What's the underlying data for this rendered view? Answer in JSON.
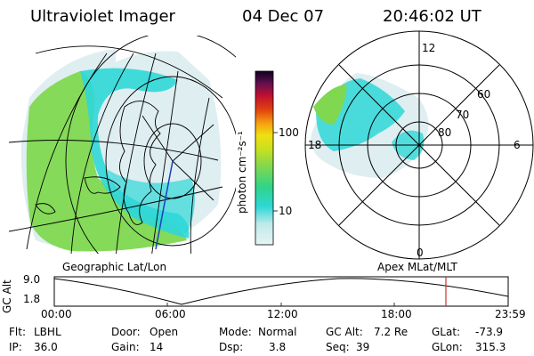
{
  "header": {
    "instrument": "Ultraviolet Imager",
    "date": "04 Dec 07",
    "time": "20:46:02 UT"
  },
  "colorbar": {
    "unit_label": "photon cm⁻²s⁻¹",
    "ticks": [
      "100",
      "10"
    ]
  },
  "geo_panel": {
    "label": "Geographic Lat/Lon"
  },
  "polar_panel": {
    "label": "Apex MLat/MLT",
    "mlt_labels": [
      "12",
      "6",
      "18",
      "0"
    ],
    "lat_labels": [
      "60",
      "70",
      "80"
    ]
  },
  "orbit": {
    "ylabel": "GC Alt",
    "ymax": "9.0",
    "ymin": "1.8",
    "time_ticks": [
      "00:00",
      "06:00",
      "12:00",
      "18:00",
      "23:59"
    ],
    "marker_time": "20:46"
  },
  "status": {
    "flt_label": "Flt:",
    "flt_value": "LBHL",
    "ip_label": "IP:",
    "ip_value": "36.0",
    "door_label": "Door:",
    "door_value": "Open",
    "gain_label": "Gain:",
    "gain_value": "14",
    "mode_label": "Mode:",
    "mode_value": "Normal",
    "dsp_label": "Dsp:",
    "dsp_value": "3.8",
    "gcalt_label": "GC Alt:",
    "gcalt_value": "7.2 Re",
    "seq_label": "Seq:",
    "seq_value": "39",
    "glat_label": "GLat:",
    "glat_value": "-73.9",
    "glon_label": "GLon:",
    "glon_value": "315.3"
  },
  "colors": {
    "marker": "#d32f2f",
    "cyan": "#2fd7d7",
    "green": "#7fd850",
    "pale": "#dfeef0"
  }
}
